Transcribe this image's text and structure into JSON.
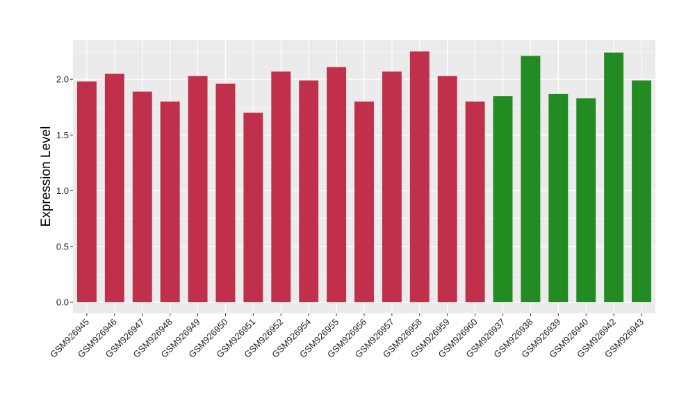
{
  "chart_data": {
    "type": "bar",
    "title": "",
    "xlabel": "",
    "ylabel": "Expression Level",
    "ylim": [
      -0.1,
      2.35
    ],
    "yticks": [
      0.0,
      0.5,
      1.0,
      1.5,
      2.0
    ],
    "ytick_labels": [
      "0.0",
      "0.5",
      "1.0",
      "1.5",
      "2.0"
    ],
    "grid": true,
    "legend": "none",
    "categories": [
      "GSM926945",
      "GSM926946",
      "GSM926947",
      "GSM926948",
      "GSM926949",
      "GSM926950",
      "GSM926951",
      "GSM926952",
      "GSM926954",
      "GSM926955",
      "GSM926956",
      "GSM926957",
      "GSM926958",
      "GSM926959",
      "GSM926960",
      "GSM926937",
      "GSM926938",
      "GSM926939",
      "GSM926940",
      "GSM926942",
      "GSM926943"
    ],
    "values": [
      1.98,
      2.05,
      1.89,
      1.8,
      2.03,
      1.96,
      1.7,
      2.07,
      1.99,
      2.11,
      1.8,
      2.07,
      2.25,
      2.03,
      1.8,
      1.85,
      2.21,
      1.87,
      1.83,
      2.24,
      1.99
    ],
    "group": [
      "a",
      "a",
      "a",
      "a",
      "a",
      "a",
      "a",
      "a",
      "a",
      "a",
      "a",
      "a",
      "a",
      "a",
      "a",
      "b",
      "b",
      "b",
      "b",
      "b",
      "b"
    ],
    "group_colors": {
      "a": "#C0304A",
      "b": "#228B22"
    },
    "panel_background": "#EBEBEB",
    "gridline_color": "#FFFFFF"
  }
}
